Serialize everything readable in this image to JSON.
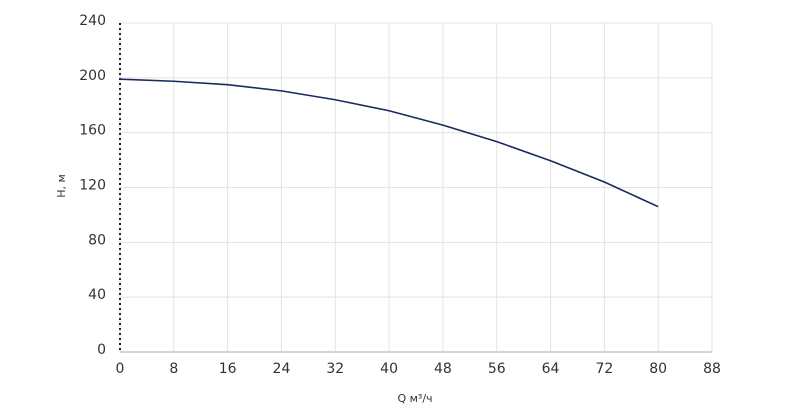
{
  "chart_data": {
    "type": "line",
    "x_label": "Q м³/ч",
    "y_label": "H, м",
    "x": [
      0,
      8,
      16,
      24,
      32,
      40,
      48,
      56,
      64,
      72,
      80
    ],
    "series": [
      {
        "color": "#1b2a5e",
        "values": [
          199,
          197.5,
          195,
          190.5,
          184,
          176,
          165.5,
          153.5,
          139.5,
          124,
          106
        ]
      }
    ],
    "xlim": [
      0,
      88
    ],
    "xticks": [
      0,
      8,
      16,
      24,
      32,
      40,
      48,
      56,
      64,
      72,
      80,
      88
    ],
    "ylim": [
      0,
      240
    ],
    "yticks": [
      0,
      40,
      80,
      120,
      160,
      200,
      240
    ],
    "grid": true
  }
}
